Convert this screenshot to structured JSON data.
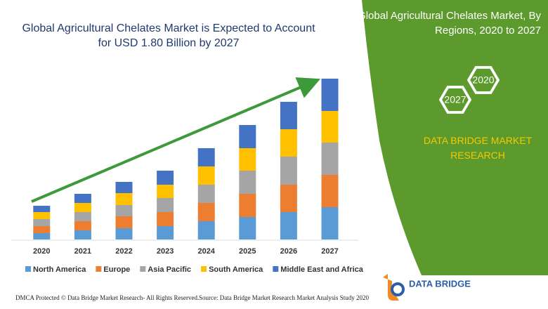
{
  "chart_data": {
    "type": "bar",
    "stacked": true,
    "title": "Global Agricultural Chelates Market is Expected to Account for USD 1.80 Billion by 2027",
    "categories": [
      "2020",
      "2021",
      "2022",
      "2023",
      "2024",
      "2025",
      "2026",
      "2027"
    ],
    "series": [
      {
        "name": "North America",
        "color": "#5b9bd5",
        "values": [
          9,
          13,
          16,
          19,
          26,
          32,
          39,
          46
        ]
      },
      {
        "name": "Europe",
        "color": "#ed7d31",
        "values": [
          10,
          13,
          17,
          20,
          26,
          33,
          39,
          46
        ]
      },
      {
        "name": "Asia Pacific",
        "color": "#a5a5a5",
        "values": [
          10,
          13,
          16,
          20,
          26,
          33,
          40,
          46
        ]
      },
      {
        "name": "South America",
        "color": "#ffc000",
        "values": [
          10,
          13,
          17,
          19,
          26,
          32,
          39,
          45
        ]
      },
      {
        "name": "Middle East and Africa",
        "color": "#4472c4",
        "values": [
          9,
          13,
          16,
          20,
          26,
          33,
          39,
          46
        ]
      }
    ],
    "ylim": [
      0,
      240
    ],
    "grid": false,
    "legend": "bottom"
  },
  "panel": {
    "title": "Global Agricultural Chelates Market, By Regions, 2020 to 2027",
    "hex_labels": [
      "2020",
      "2027"
    ],
    "brand": "DATA BRIDGE MARKET RESEARCH",
    "logo_text": "DATA BRIDGE"
  },
  "footer": {
    "left": "DMCA Protected © Data Bridge Market Research- All Rights Reserved.",
    "right": "Source: Data Bridge Market Research Market Analysis Study 2020"
  }
}
